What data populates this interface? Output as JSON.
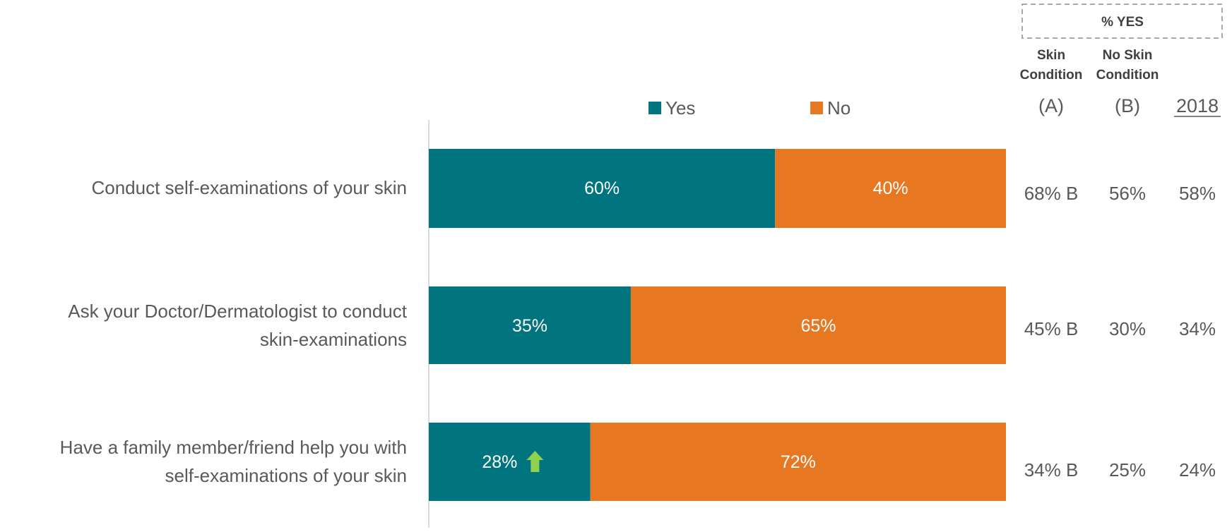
{
  "colors": {
    "yes": "#00757F",
    "no": "#E87722",
    "label_text": "#595959",
    "bar_label_text": "#ffffff",
    "axis": "#d9d9d9",
    "up_arrow": "#92D050",
    "box_border": "#8c8c8c"
  },
  "legend": [
    {
      "label": "Yes",
      "color_key": "yes"
    },
    {
      "label": "No",
      "color_key": "no"
    }
  ],
  "table": {
    "header_box": "% YES",
    "columns": [
      {
        "header_line1": "Skin",
        "header_line2": "Condition",
        "code": "(A)"
      },
      {
        "header_line1": "No Skin",
        "header_line2": "Condition",
        "code": "(B)"
      },
      {
        "header_line1": "",
        "header_line2": "",
        "code": "2018"
      }
    ],
    "rows": [
      [
        "68% B",
        "56%",
        "58%"
      ],
      [
        "45% B",
        "30%",
        "34%"
      ],
      [
        "34% B",
        "25%",
        "24%"
      ]
    ]
  },
  "chart_data": {
    "type": "bar",
    "orientation": "horizontal",
    "stacked": true,
    "percent_stacked": true,
    "categories": [
      "Conduct self-examinations of your skin",
      "Ask your Doctor/Dermatologist to conduct skin-examinations",
      "Have a family member/friend help you with self-examinations of your skin"
    ],
    "category_label_lines": [
      [
        "Conduct self-examinations of your skin"
      ],
      [
        "Ask your Doctor/Dermatologist to conduct",
        "skin-examinations"
      ],
      [
        "Have a family member/friend help you with",
        "self-examinations of your skin"
      ]
    ],
    "series": [
      {
        "name": "Yes",
        "values": [
          60,
          35,
          28
        ],
        "labels": [
          "60%",
          "35%",
          "28%"
        ]
      },
      {
        "name": "No",
        "values": [
          40,
          65,
          72
        ],
        "labels": [
          "40%",
          "65%",
          "72%"
        ]
      }
    ],
    "significance_up_arrow": [
      false,
      false,
      true
    ],
    "xlim": [
      0,
      100
    ],
    "legend_position": "top",
    "grid": false
  }
}
